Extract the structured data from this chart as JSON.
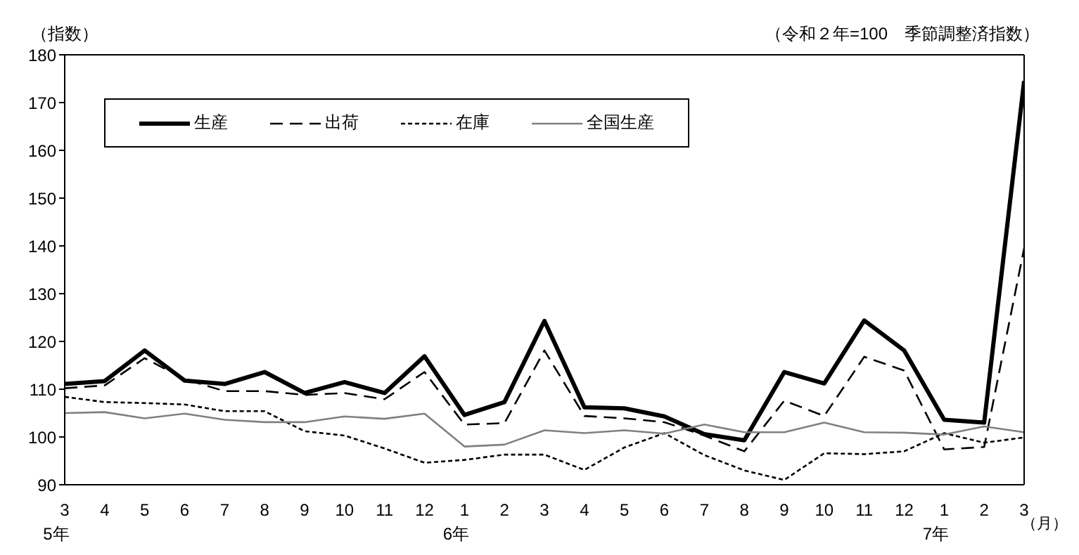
{
  "chart_data": {
    "type": "line",
    "subtitle": "（令和２年=100　季節調整済指数）",
    "ylabel": "（指数）",
    "xlabel": "（月）",
    "categories": [
      "3\n5年",
      "4",
      "5",
      "6",
      "7",
      "8",
      "9",
      "10",
      "11",
      "12",
      "1\n6年",
      "2",
      "3",
      "4",
      "5",
      "6",
      "7",
      "8",
      "9",
      "10",
      "11",
      "12",
      "1\n7年",
      "2",
      "3"
    ],
    "series": [
      {
        "name": "生産",
        "color": "#000000",
        "line_style": "solid",
        "values": [
          111.1,
          111.7,
          118.1,
          111.8,
          111.1,
          113.6,
          109.2,
          111.5,
          109.2,
          116.9,
          104.6,
          107.3,
          124.3,
          106.2,
          106.0,
          104.3,
          100.6,
          99.3,
          113.6,
          111.2,
          124.4,
          118.1,
          103.6,
          103.0,
          174.5
        ]
      },
      {
        "name": "出荷",
        "color": "#000000",
        "line_style": "dashed",
        "values": [
          110.2,
          110.8,
          116.5,
          112.1,
          109.6,
          109.6,
          108.8,
          109.2,
          107.9,
          113.6,
          102.6,
          102.9,
          118.1,
          104.4,
          103.9,
          103.1,
          100.3,
          97.0,
          107.6,
          104.4,
          116.8,
          113.9,
          97.4,
          97.9,
          139.5
        ]
      },
      {
        "name": "在庫",
        "color": "#000000",
        "line_style": "dotted",
        "values": [
          108.4,
          107.3,
          107.1,
          106.8,
          105.4,
          105.4,
          101.2,
          100.3,
          97.6,
          94.6,
          95.2,
          96.3,
          96.3,
          93.1,
          97.8,
          100.8,
          96.2,
          93.0,
          91.0,
          96.6,
          96.4,
          97.0,
          100.8,
          98.8,
          99.9
        ]
      },
      {
        "name": "全国生産",
        "color": "#808080",
        "line_style": "solid",
        "values": [
          105.0,
          105.2,
          103.9,
          104.9,
          103.6,
          103.1,
          103.1,
          104.3,
          103.8,
          104.9,
          98.0,
          98.4,
          101.4,
          100.8,
          101.4,
          100.7,
          102.6,
          101.0,
          101.0,
          103.0,
          101.0,
          100.9,
          100.5,
          102.2,
          101.0
        ]
      }
    ],
    "ylim": [
      90,
      180
    ],
    "yticks": [
      90,
      100,
      110,
      120,
      130,
      140,
      150,
      160,
      170,
      180
    ],
    "legend": "top left",
    "marker": "none"
  }
}
